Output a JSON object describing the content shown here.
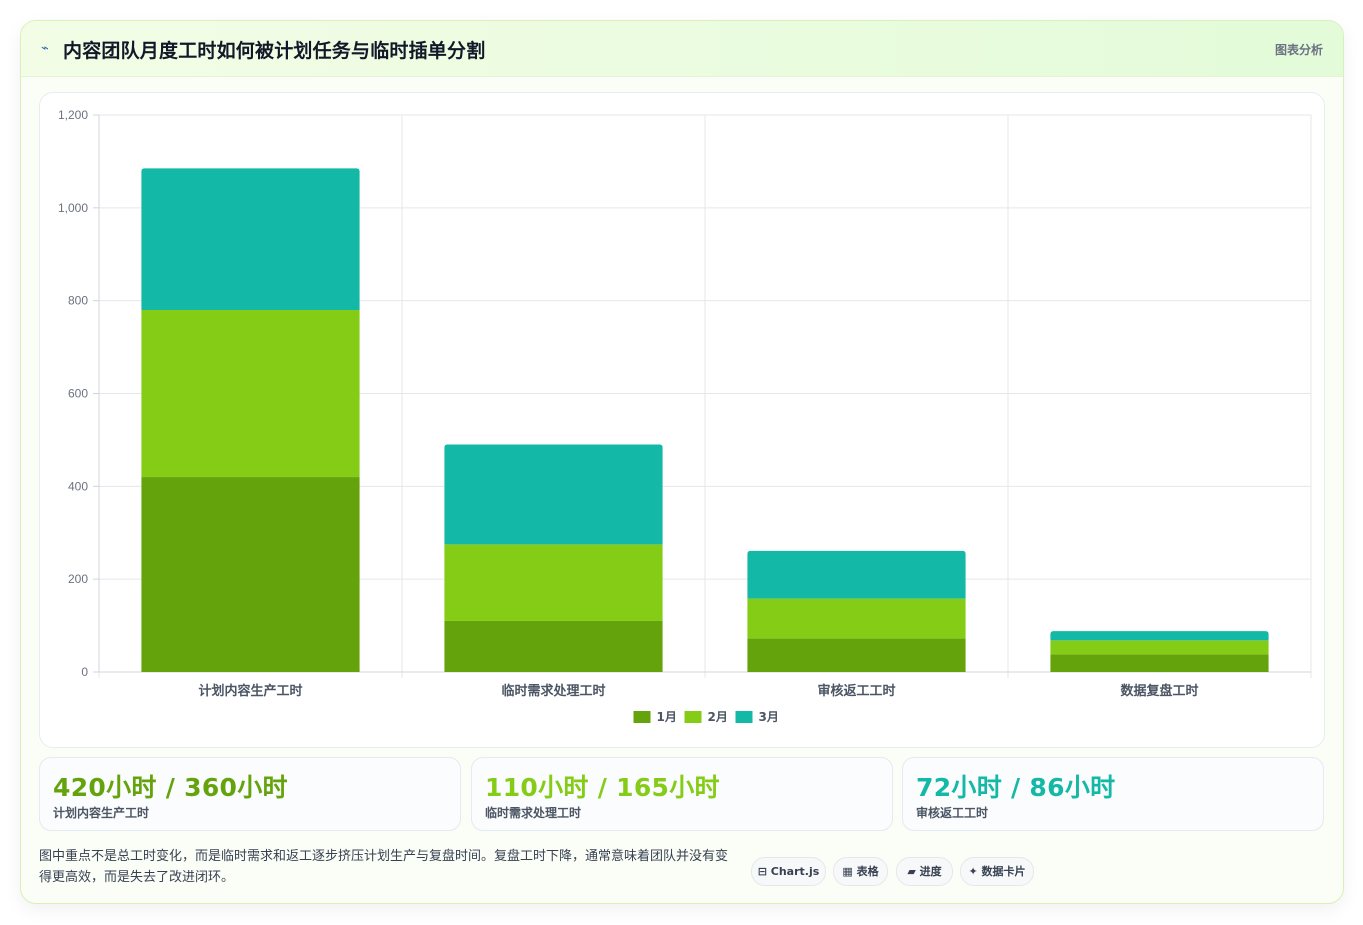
{
  "header": {
    "icon": "chart-trend-icon",
    "title": "内容团队月度工时如何被计划任务与临时插单分割",
    "tag": "图表分析"
  },
  "chart_data": {
    "type": "bar",
    "stacked": true,
    "categories": [
      "计划内容生产工时",
      "临时需求处理工时",
      "审核返工工时",
      "数据复盘工时"
    ],
    "series": [
      {
        "name": "1月",
        "color": "#65a30d",
        "values": [
          420,
          110,
          72,
          38
        ]
      },
      {
        "name": "2月",
        "color": "#84cc16",
        "values": [
          360,
          165,
          86,
          30
        ]
      },
      {
        "name": "3月",
        "color": "#14b8a6",
        "values": [
          305,
          215,
          103,
          20
        ]
      }
    ],
    "ylim": [
      0,
      1200
    ],
    "yticks": [
      0,
      200,
      400,
      600,
      800,
      1000,
      1200
    ],
    "ytick_labels": [
      "0",
      "200",
      "400",
      "600",
      "800",
      "1,000",
      "1,200"
    ],
    "grid": true,
    "legend": "bottom"
  },
  "stats": [
    {
      "value": "420小时 / 360小时",
      "label": "计划内容生产工时",
      "color": "#65a30d"
    },
    {
      "value": "110小时 / 165小时",
      "label": "临时需求处理工时",
      "color": "#84cc16"
    },
    {
      "value": "72小时 / 86小时",
      "label": "审核返工工时",
      "color": "#14b8a6"
    }
  ],
  "note": "图中重点不是总工时变化，而是临时需求和返工逐步挤压计划生产与复盘时间。复盘工时下降，通常意味着团队并没有变得更高效，而是失去了改进闭环。",
  "pills": [
    {
      "icon": "⊟",
      "label": "Chart.js"
    },
    {
      "icon": "▦",
      "label": "表格"
    },
    {
      "icon": "▰",
      "label": "进度"
    },
    {
      "icon": "✦",
      "label": "数据卡片"
    }
  ]
}
